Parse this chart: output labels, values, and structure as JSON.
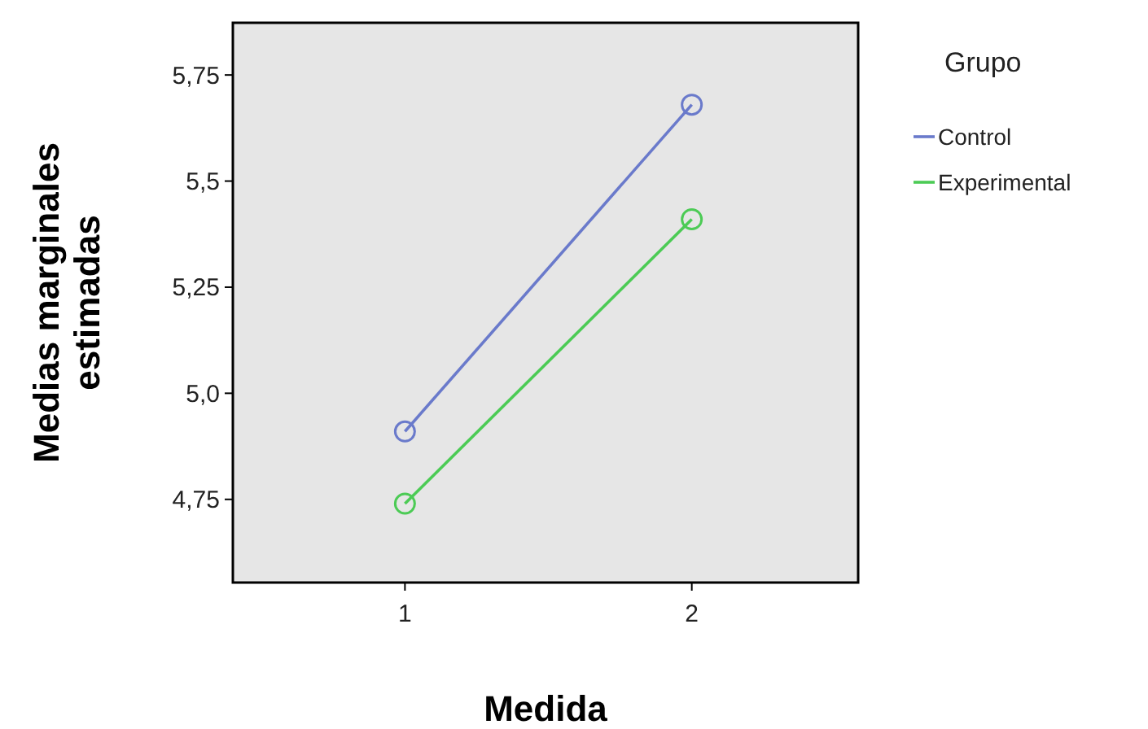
{
  "chart_data": {
    "type": "line",
    "xlabel": "Medida",
    "ylabel": "Medias marginales estimadas",
    "legend_title": "Grupo",
    "x": [
      1,
      2
    ],
    "xlim": [
      0.4,
      2.58
    ],
    "xticks": [
      1,
      2
    ],
    "ylim": [
      4.554,
      5.873
    ],
    "yticks": [
      {
        "value": 4.75,
        "label": "4,75"
      },
      {
        "value": 5.0,
        "label": "5,0"
      },
      {
        "value": 5.25,
        "label": "5,25"
      },
      {
        "value": 5.5,
        "label": "5,5"
      },
      {
        "value": 5.75,
        "label": "5,75"
      }
    ],
    "marker": "circle",
    "line_style": "solid",
    "grid": false,
    "legend": "right",
    "series": [
      {
        "name": "Control",
        "color": "#6a7acb",
        "values": [
          4.91,
          5.68
        ]
      },
      {
        "name": "Experimental",
        "color": "#4ccb55",
        "values": [
          4.74,
          5.41
        ]
      }
    ]
  }
}
